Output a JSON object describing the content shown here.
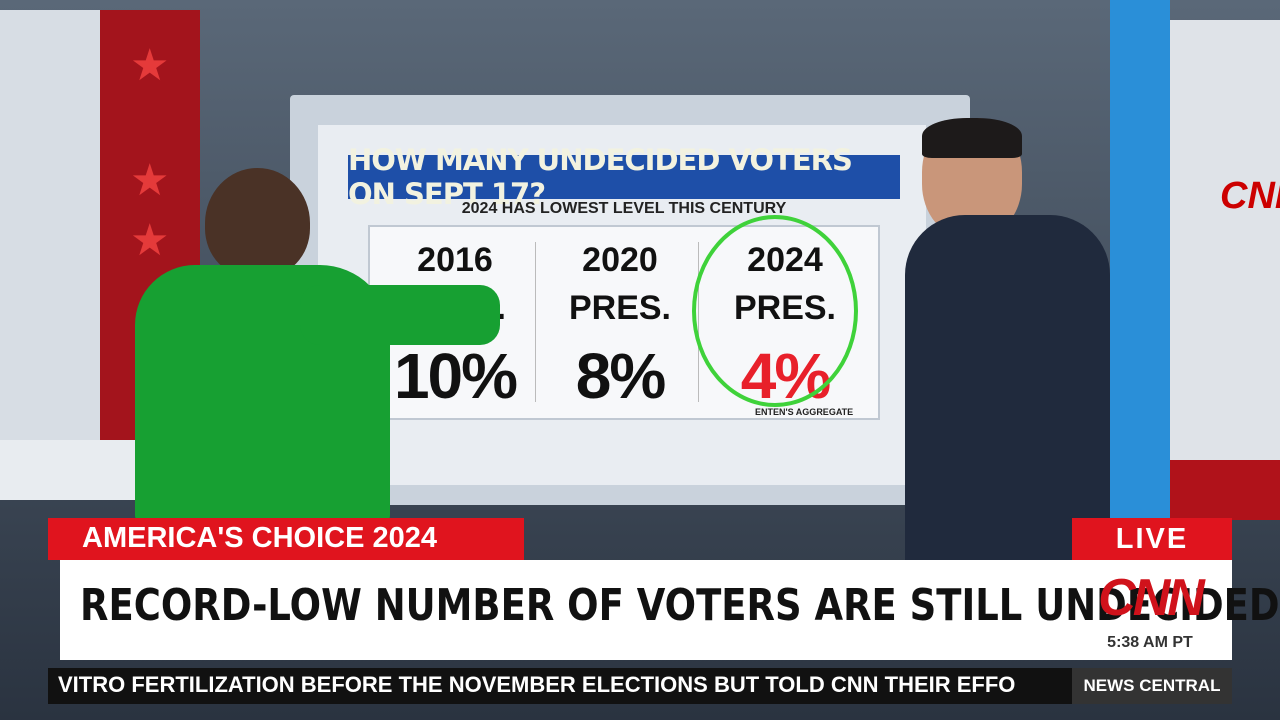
{
  "screen": {
    "title": "HOW MANY UNDECIDED VOTERS ON SEPT 17?",
    "subtitle": "2024 HAS LOWEST LEVEL THIS CENTURY",
    "columns": [
      {
        "year": "2016",
        "kind": "PRES.",
        "value": "10%"
      },
      {
        "year": "2020",
        "kind": "PRES.",
        "value": "8%"
      },
      {
        "year": "2024",
        "kind": "PRES.",
        "value": "4%"
      }
    ],
    "source": "ENTEN'S AGGREGATE"
  },
  "wall_logo": "CNN",
  "chyron": {
    "program": "AMERICA'S CHOICE 2024",
    "headline": "RECORD-LOW NUMBER OF VOTERS ARE STILL UNDECIDED",
    "live": "LIVE",
    "network": "CNN",
    "time": "5:38 AM PT",
    "ticker": "VITRO FERTILIZATION BEFORE THE NOVEMBER ELECTIONS BUT TOLD CNN THEIR EFFO",
    "show": "NEWS CENTRAL"
  }
}
